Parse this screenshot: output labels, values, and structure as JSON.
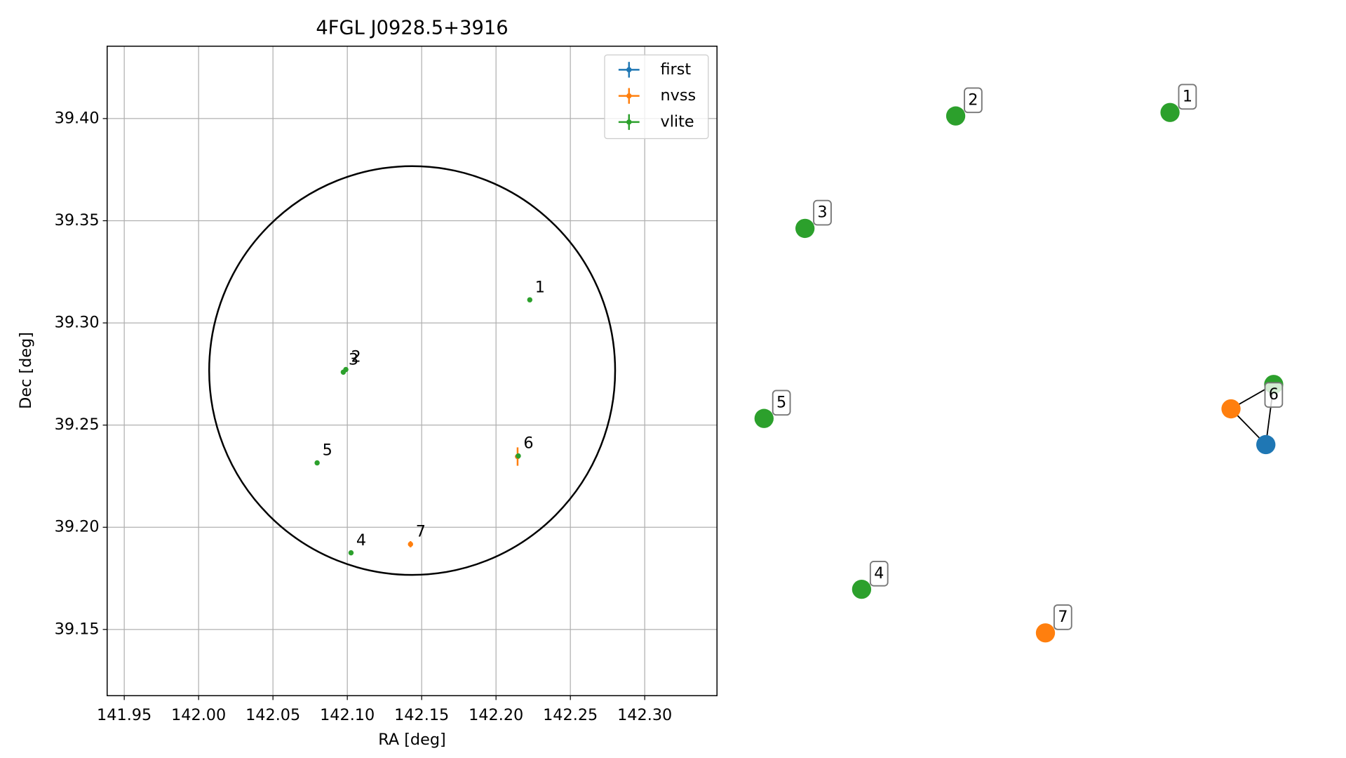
{
  "chart_data": [
    {
      "type": "scatter",
      "title": "4FGL J0928.5+3916",
      "x_label": "RA [deg]",
      "y_label": "Dec [deg]",
      "xlim": [
        141.9385,
        142.3486
      ],
      "ylim": [
        39.1176,
        39.4354
      ],
      "grid": true,
      "legend": "upper right",
      "xticks": [
        {
          "value": 141.95,
          "label": "141.95"
        },
        {
          "value": 142.0,
          "label": "142.00"
        },
        {
          "value": 142.05,
          "label": "142.05"
        },
        {
          "value": 142.1,
          "label": "142.10"
        },
        {
          "value": 142.15,
          "label": "142.15"
        },
        {
          "value": 142.2,
          "label": "142.20"
        },
        {
          "value": 142.25,
          "label": "142.25"
        },
        {
          "value": 142.3,
          "label": "142.30"
        }
      ],
      "yticks": [
        39.15,
        {
          "value": 39.2,
          "label": "39.20"
        },
        39.25,
        {
          "value": 39.3,
          "label": "39.30"
        },
        39.35,
        {
          "value": 39.4,
          "label": "39.40"
        }
      ],
      "region": {
        "ra": 142.1436,
        "dec": 39.2767,
        "ra_radius": 0.1365,
        "dec_radius": 0.1,
        "color": "#000000"
      },
      "series": [
        {
          "name": "first",
          "color": "#1f77b4",
          "x": [
            142.2145
          ],
          "y": [
            39.2346
          ],
          "yerr": [
            0.0005
          ]
        },
        {
          "name": "nvss",
          "color": "#ff7f0e",
          "x": [
            142.2145,
            142.1425
          ],
          "y": [
            39.2346,
            39.1917
          ],
          "yerr": [
            0.0045,
            0.0015
          ],
          "labels": [
            null,
            "7"
          ]
        },
        {
          "name": "vlite",
          "color": "#2ca02c",
          "x": [
            142.2227,
            142.099,
            142.0973,
            142.1025,
            142.0797,
            142.215
          ],
          "y": [
            39.3113,
            39.2772,
            39.2759,
            39.1875,
            39.2315,
            39.2349
          ],
          "yerr": [
            0.001,
            0.001,
            0.001,
            0.001,
            0.001,
            0.001
          ],
          "labels": [
            "1",
            "2",
            "3",
            "4",
            "5",
            "6"
          ]
        }
      ]
    },
    {
      "type": "graph",
      "nodes": [
        {
          "label": "1",
          "color": "#2ca02c"
        },
        {
          "label": "2",
          "color": "#2ca02c"
        },
        {
          "label": "3",
          "color": "#2ca02c"
        },
        {
          "label": "5",
          "color": "#2ca02c"
        },
        {
          "label": "4",
          "color": "#2ca02c"
        },
        {
          "label": "7",
          "color": "#ff7f0e"
        },
        {
          "label": "6",
          "color": "#2ca02c"
        },
        {
          "label": null,
          "color": "#ff7f0e"
        },
        {
          "label": null,
          "color": "#1f77b4"
        }
      ],
      "edges": [
        [
          6,
          7
        ],
        [
          7,
          8
        ],
        [
          6,
          8
        ]
      ]
    }
  ]
}
